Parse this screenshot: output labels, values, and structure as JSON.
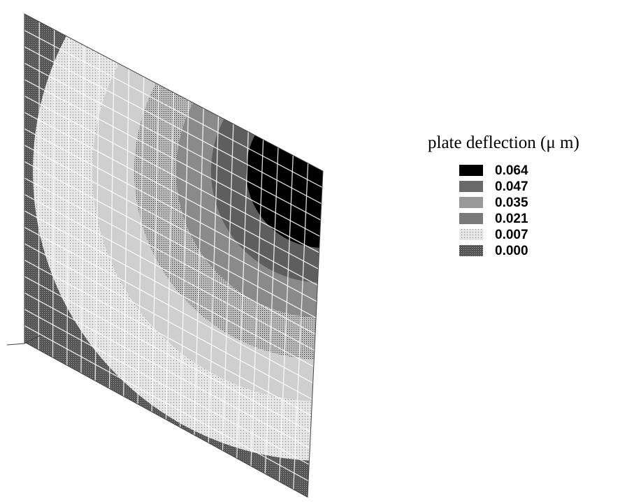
{
  "legend": {
    "title": "plate deflection (μ m)",
    "levels": [
      "0.064",
      "0.047",
      "0.035",
      "0.021",
      "0.007",
      "0.000"
    ]
  }
}
